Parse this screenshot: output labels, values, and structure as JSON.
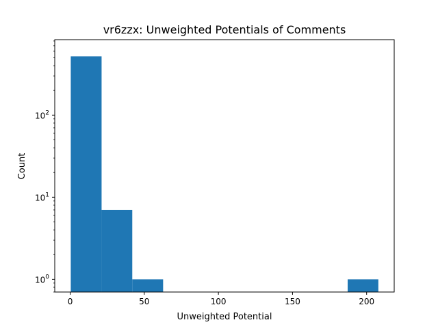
{
  "chart_data": {
    "type": "bar",
    "title": "vr6zzx: Unweighted Potentials of Comments",
    "xlabel": "Unweighted Potential",
    "ylabel": "Count",
    "xlim": [
      -10.4,
      218.6
    ],
    "ylim": [
      0.7,
      830
    ],
    "yscale": "log",
    "grid": false,
    "bar_color": "#1f77b4",
    "bins": [
      {
        "x0": 0.4,
        "x1": 21.2,
        "count": 520
      },
      {
        "x0": 21.2,
        "x1": 41.9,
        "count": 7
      },
      {
        "x0": 41.9,
        "x1": 62.7,
        "count": 1
      },
      {
        "x0": 62.7,
        "x1": 83.4,
        "count": 0
      },
      {
        "x0": 83.4,
        "x1": 104.2,
        "count": 0
      },
      {
        "x0": 104.2,
        "x1": 124.9,
        "count": 0
      },
      {
        "x0": 124.9,
        "x1": 145.7,
        "count": 0
      },
      {
        "x0": 145.7,
        "x1": 166.4,
        "count": 0
      },
      {
        "x0": 166.4,
        "x1": 187.2,
        "count": 0
      },
      {
        "x0": 187.2,
        "x1": 207.9,
        "count": 1
      }
    ],
    "x_ticks": [
      {
        "value": 0,
        "label": "0"
      },
      {
        "value": 50,
        "label": "50"
      },
      {
        "value": 100,
        "label": "100"
      },
      {
        "value": 150,
        "label": "150"
      },
      {
        "value": 200,
        "label": "200"
      }
    ],
    "y_ticks": [
      {
        "value": 1,
        "base": "10",
        "exp": "0"
      },
      {
        "value": 10,
        "base": "10",
        "exp": "1"
      },
      {
        "value": 100,
        "base": "10",
        "exp": "2"
      }
    ]
  }
}
